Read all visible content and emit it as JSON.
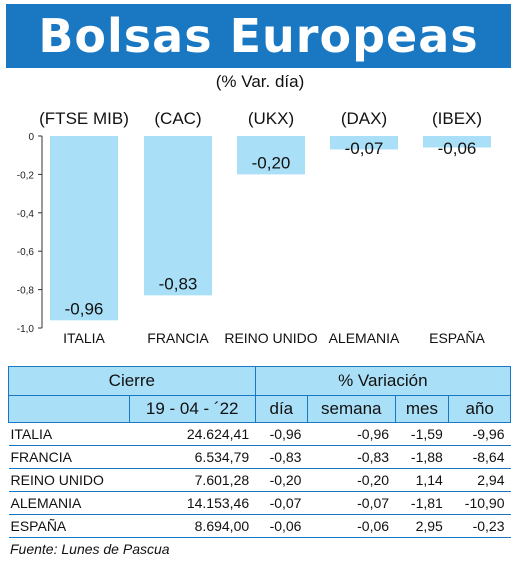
{
  "header": {
    "title": "Bolsas Europeas",
    "subtitle": "(% Var. día)"
  },
  "colors": {
    "title_bg": "#1a78c2",
    "bar_fill": "#a9e0f7",
    "table_header_bg": "#a9e0f7",
    "rule": "#1a78c2"
  },
  "chart_data": {
    "type": "bar",
    "categories": [
      "ITALIA",
      "FRANCIA",
      "REINO UNIDO",
      "ALEMANIA",
      "ESPAÑA"
    ],
    "index_labels": [
      "(FTSE MIB)",
      "(CAC)",
      "(UKX)",
      "(DAX)",
      "(IBEX)"
    ],
    "values": [
      -0.96,
      -0.83,
      -0.2,
      -0.07,
      -0.06
    ],
    "value_labels": [
      "-0,96",
      "-0,83",
      "-0,20",
      "-0,07",
      "-0,06"
    ],
    "ylim": [
      -1.0,
      0
    ],
    "yticks": [
      0,
      -0.2,
      -0.4,
      -0.6,
      -0.8,
      -1.0
    ],
    "ytick_labels": [
      "0",
      "-0,2",
      "-0,4",
      "-0,6",
      "-0,8",
      "-1,0"
    ],
    "grid": false
  },
  "table": {
    "group_headers": [
      "Cierre",
      "% Variación"
    ],
    "date": "19 - 04 - ´22",
    "sub_headers": [
      "día",
      "semana",
      "mes",
      "año"
    ],
    "rows": [
      {
        "name": "ITALIA",
        "cierre": "24.624,41",
        "dia": "-0,96",
        "semana": "-0,96",
        "mes": "-1,59",
        "ano": "-9,96"
      },
      {
        "name": "FRANCIA",
        "cierre": "6.534,79",
        "dia": "-0,83",
        "semana": "-0,83",
        "mes": "-1,88",
        "ano": "-8,64"
      },
      {
        "name": "REINO UNIDO",
        "cierre": "7.601,28",
        "dia": "-0,20",
        "semana": "-0,20",
        "mes": "1,14",
        "ano": "2,94"
      },
      {
        "name": "ALEMANIA",
        "cierre": "14.153,46",
        "dia": "-0,07",
        "semana": "-0,07",
        "mes": "-1,81",
        "ano": "-10,90"
      },
      {
        "name": "ESPAÑA",
        "cierre": "8.694,00",
        "dia": "-0,06",
        "semana": "-0,06",
        "mes": "2,95",
        "ano": "-0,23"
      }
    ]
  },
  "source": "Fuente: Lunes de Pascua"
}
